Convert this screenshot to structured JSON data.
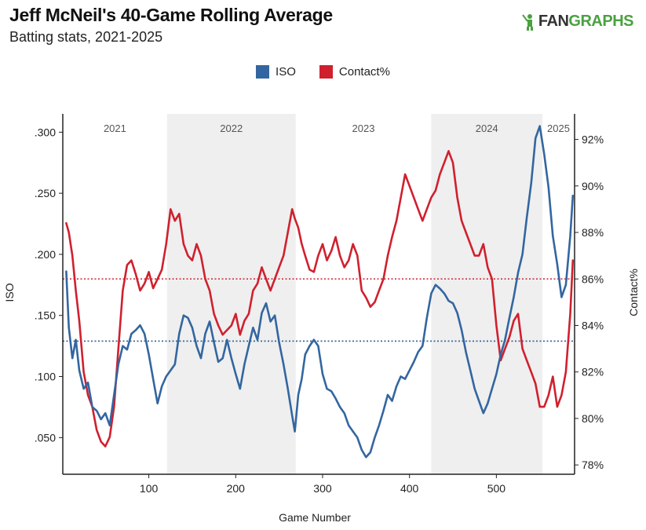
{
  "header": {
    "title": "Jeff McNeil's 40-Game Rolling Average",
    "subtitle": "Batting stats, 2021-2025",
    "brand_fan": "FAN",
    "brand_graphs": "GRAPHS"
  },
  "chart_data": {
    "type": "line",
    "title": "Jeff McNeil's 40-Game Rolling Average",
    "subtitle": "Batting stats, 2021-2025",
    "xlabel": "Game Number",
    "ylabel_left": "ISO",
    "ylabel_right": "Contact%",
    "xlim": [
      1,
      590
    ],
    "ylim_left": [
      0.02,
      0.315
    ],
    "ylim_right": [
      77.6,
      93.1
    ],
    "x_ticks": [
      100,
      200,
      300,
      400,
      500
    ],
    "x_tick_labels": [
      "100",
      "200",
      "300",
      "400",
      "500"
    ],
    "y_left_ticks": [
      0.05,
      0.1,
      0.15,
      0.2,
      0.25,
      0.3
    ],
    "y_left_tick_labels": [
      ".050",
      ".100",
      ".150",
      ".200",
      ".250",
      ".300"
    ],
    "y_right_ticks": [
      78,
      80,
      82,
      84,
      86,
      88,
      90,
      92
    ],
    "y_right_tick_labels": [
      "78%",
      "80%",
      "82%",
      "84%",
      "86%",
      "88%",
      "90%",
      "92%"
    ],
    "grid": false,
    "legend_position": "top-center",
    "seasons": [
      {
        "label": "2021",
        "start": 1,
        "end": 121,
        "shaded": false
      },
      {
        "label": "2022",
        "start": 121,
        "end": 269,
        "shaded": true
      },
      {
        "label": "2023",
        "start": 269,
        "end": 425,
        "shaded": false
      },
      {
        "label": "2024",
        "start": 425,
        "end": 553,
        "shaded": true
      },
      {
        "label": "2025",
        "start": 553,
        "end": 590,
        "shaded": false
      }
    ],
    "reference_lines": [
      {
        "series": "ISO",
        "axis": "left",
        "value": 0.129,
        "color": "#2e5f91"
      },
      {
        "series": "Contact%",
        "axis": "right",
        "value": 86.0,
        "color": "#d0202e"
      }
    ],
    "series": [
      {
        "name": "ISO",
        "axis": "left",
        "color": "#3366a0",
        "x": [
          5,
          8,
          12,
          16,
          20,
          25,
          30,
          35,
          40,
          45,
          50,
          55,
          60,
          65,
          70,
          75,
          80,
          85,
          90,
          95,
          100,
          105,
          110,
          115,
          120,
          125,
          130,
          135,
          140,
          145,
          150,
          155,
          160,
          165,
          170,
          175,
          180,
          185,
          190,
          195,
          200,
          205,
          210,
          215,
          220,
          225,
          230,
          235,
          240,
          245,
          250,
          255,
          260,
          265,
          268,
          272,
          276,
          280,
          285,
          290,
          295,
          300,
          305,
          310,
          315,
          320,
          325,
          330,
          335,
          340,
          345,
          350,
          355,
          360,
          365,
          370,
          375,
          380,
          385,
          390,
          395,
          400,
          405,
          410,
          415,
          420,
          425,
          430,
          435,
          440,
          445,
          450,
          455,
          460,
          465,
          470,
          475,
          480,
          485,
          490,
          495,
          500,
          505,
          510,
          515,
          520,
          525,
          530,
          535,
          540,
          545,
          550,
          555,
          560,
          565,
          570,
          575,
          580,
          585,
          588
        ],
        "values": [
          0.186,
          0.14,
          0.115,
          0.13,
          0.105,
          0.09,
          0.095,
          0.075,
          0.072,
          0.065,
          0.07,
          0.06,
          0.085,
          0.11,
          0.125,
          0.122,
          0.135,
          0.138,
          0.142,
          0.135,
          0.118,
          0.098,
          0.078,
          0.092,
          0.1,
          0.105,
          0.11,
          0.135,
          0.15,
          0.148,
          0.14,
          0.125,
          0.115,
          0.135,
          0.145,
          0.128,
          0.112,
          0.115,
          0.13,
          0.115,
          0.102,
          0.09,
          0.11,
          0.125,
          0.14,
          0.13,
          0.152,
          0.16,
          0.145,
          0.15,
          0.128,
          0.11,
          0.09,
          0.068,
          0.055,
          0.085,
          0.098,
          0.118,
          0.125,
          0.13,
          0.125,
          0.102,
          0.09,
          0.088,
          0.082,
          0.075,
          0.07,
          0.06,
          0.055,
          0.05,
          0.04,
          0.034,
          0.038,
          0.05,
          0.06,
          0.072,
          0.085,
          0.08,
          0.092,
          0.1,
          0.098,
          0.105,
          0.112,
          0.12,
          0.125,
          0.148,
          0.168,
          0.175,
          0.172,
          0.168,
          0.162,
          0.16,
          0.152,
          0.138,
          0.12,
          0.105,
          0.09,
          0.08,
          0.07,
          0.078,
          0.09,
          0.102,
          0.118,
          0.13,
          0.148,
          0.165,
          0.185,
          0.2,
          0.23,
          0.258,
          0.295,
          0.305,
          0.282,
          0.255,
          0.215,
          0.192,
          0.165,
          0.175,
          0.215,
          0.248
        ]
      },
      {
        "name": "Contact%",
        "axis": "right",
        "color": "#d0202e",
        "x": [
          5,
          8,
          12,
          16,
          20,
          25,
          30,
          35,
          40,
          45,
          50,
          55,
          60,
          65,
          70,
          75,
          80,
          85,
          90,
          95,
          100,
          105,
          110,
          115,
          120,
          125,
          130,
          135,
          140,
          145,
          150,
          155,
          160,
          165,
          170,
          175,
          180,
          185,
          190,
          195,
          200,
          205,
          210,
          215,
          220,
          225,
          230,
          235,
          240,
          245,
          250,
          255,
          260,
          265,
          268,
          272,
          276,
          280,
          285,
          290,
          295,
          300,
          305,
          310,
          315,
          320,
          325,
          330,
          335,
          340,
          345,
          350,
          355,
          360,
          365,
          370,
          375,
          380,
          385,
          390,
          395,
          400,
          405,
          410,
          415,
          420,
          425,
          430,
          435,
          440,
          445,
          450,
          455,
          460,
          465,
          470,
          475,
          480,
          485,
          490,
          495,
          500,
          505,
          510,
          515,
          520,
          525,
          530,
          535,
          540,
          545,
          550,
          555,
          560,
          565,
          570,
          575,
          580,
          585,
          588
        ],
        "values": [
          88.4,
          88.0,
          87.0,
          85.5,
          84.2,
          82.0,
          81.0,
          80.5,
          79.5,
          79.0,
          78.8,
          79.2,
          80.5,
          83.0,
          85.5,
          86.6,
          86.8,
          86.2,
          85.5,
          85.8,
          86.3,
          85.6,
          86.0,
          86.4,
          87.5,
          89.0,
          88.5,
          88.8,
          87.5,
          87.0,
          86.8,
          87.5,
          87.0,
          86.0,
          85.5,
          84.5,
          84.0,
          83.6,
          83.8,
          84.0,
          84.5,
          83.6,
          84.2,
          84.5,
          85.5,
          85.8,
          86.5,
          86.0,
          85.5,
          86.0,
          86.5,
          87.0,
          88.0,
          89.0,
          88.6,
          88.2,
          87.5,
          87.0,
          86.4,
          86.3,
          87.0,
          87.5,
          86.8,
          87.2,
          87.8,
          87.0,
          86.5,
          86.8,
          87.5,
          87.0,
          85.5,
          85.2,
          84.8,
          85.0,
          85.5,
          86.0,
          87.0,
          87.8,
          88.5,
          89.5,
          90.5,
          90.0,
          89.5,
          89.0,
          88.5,
          89.0,
          89.5,
          89.8,
          90.5,
          91.0,
          91.5,
          91.0,
          89.5,
          88.5,
          88.0,
          87.5,
          87.0,
          87.0,
          87.5,
          86.5,
          86.0,
          84.0,
          82.5,
          83.0,
          83.5,
          84.2,
          84.5,
          83.0,
          82.5,
          82.0,
          81.5,
          80.5,
          80.5,
          81.0,
          81.8,
          80.5,
          81.0,
          82.0,
          84.5,
          86.8
        ]
      }
    ]
  }
}
